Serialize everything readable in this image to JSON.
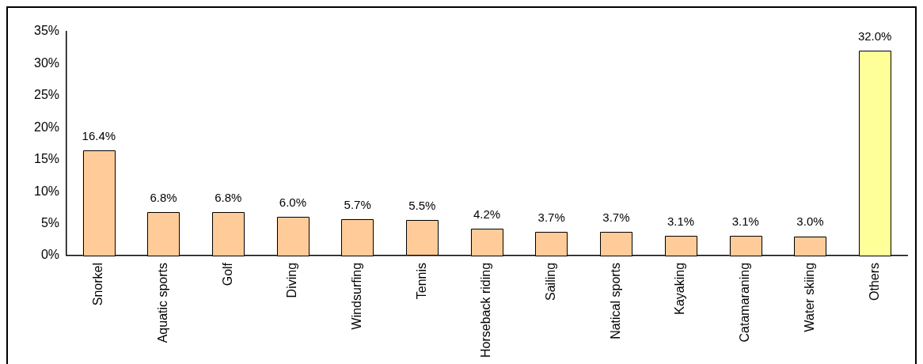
{
  "chart_data": {
    "type": "bar",
    "categories": [
      "Snorkel",
      "Aquatic sports",
      "Golf",
      "Diving",
      "Windsurfing",
      "Tennis",
      "Horseback riding",
      "Sailing",
      "Natical sports",
      "Kayaking",
      "Catamaraning",
      "Water skiing",
      "Others"
    ],
    "values": [
      16.4,
      6.8,
      6.8,
      6.0,
      5.7,
      5.5,
      4.2,
      3.7,
      3.7,
      3.1,
      3.1,
      3.0,
      32.0
    ],
    "colors": [
      "#ffcc99",
      "#ffcc99",
      "#ffcc99",
      "#ffcc99",
      "#ffcc99",
      "#ffcc99",
      "#ffcc99",
      "#ffcc99",
      "#ffcc99",
      "#ffcc99",
      "#ffcc99",
      "#ffcc99",
      "#ffff99"
    ],
    "value_labels": [
      "16.4%",
      "6.8%",
      "6.8%",
      "6.0%",
      "5.7%",
      "5.5%",
      "4.2%",
      "3.7%",
      "3.7%",
      "3.1%",
      "3.1%",
      "3.0%",
      "32.0%"
    ],
    "ylim": [
      0,
      35
    ],
    "yticks": [
      {
        "value": 0,
        "label": "0%"
      },
      {
        "value": 5,
        "label": "5%"
      },
      {
        "value": 10,
        "label": "10%"
      },
      {
        "value": 15,
        "label": "15%"
      },
      {
        "value": 20,
        "label": "20%"
      },
      {
        "value": 25,
        "label": "25%"
      },
      {
        "value": 30,
        "label": "30%"
      },
      {
        "value": 35,
        "label": "35%"
      }
    ],
    "grid": false,
    "legend": false
  }
}
